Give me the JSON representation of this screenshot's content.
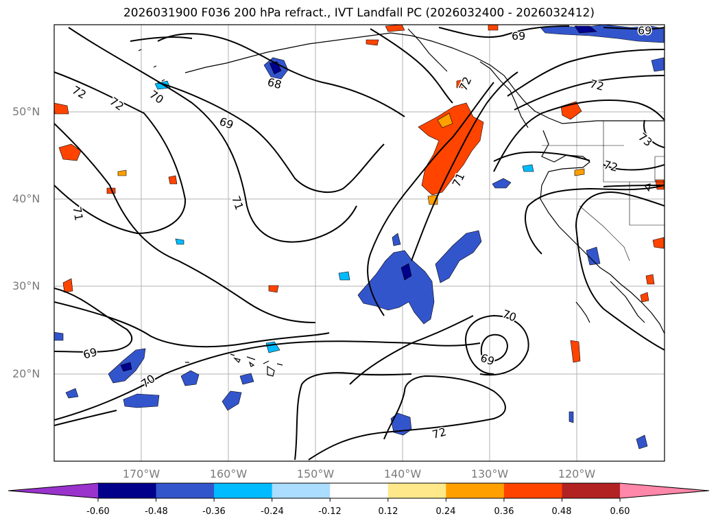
{
  "title": "2026031900 F036 200 hPa refract., IVT Landfall PC (2026032400 - 2026032412)",
  "lat_labels": [
    "50°N",
    "40°N",
    "30°N",
    "20°N"
  ],
  "lon_labels": [
    "170°W",
    "160°W",
    "150°W",
    "140°W",
    "130°W",
    "120°W"
  ],
  "contour_labels": [
    "72",
    "72",
    "70",
    "68",
    "69",
    "71",
    "71",
    "69",
    "70",
    "72",
    "69",
    "70",
    "72",
    "69",
    "73",
    "72",
    "69"
  ],
  "colorbar": {
    "ticks": [
      "-0.60",
      "-0.48",
      "-0.36",
      "-0.24",
      "-0.12",
      "0.12",
      "0.24",
      "0.36",
      "0.48",
      "0.60"
    ],
    "colors": [
      "#9933cc",
      "#00008b",
      "#3355cc",
      "#00bbff",
      "#aaddff",
      "#ffffff",
      "#ffe88a",
      "#ffa000",
      "#ff4400",
      "#b22222",
      "#ff88aa"
    ]
  }
}
